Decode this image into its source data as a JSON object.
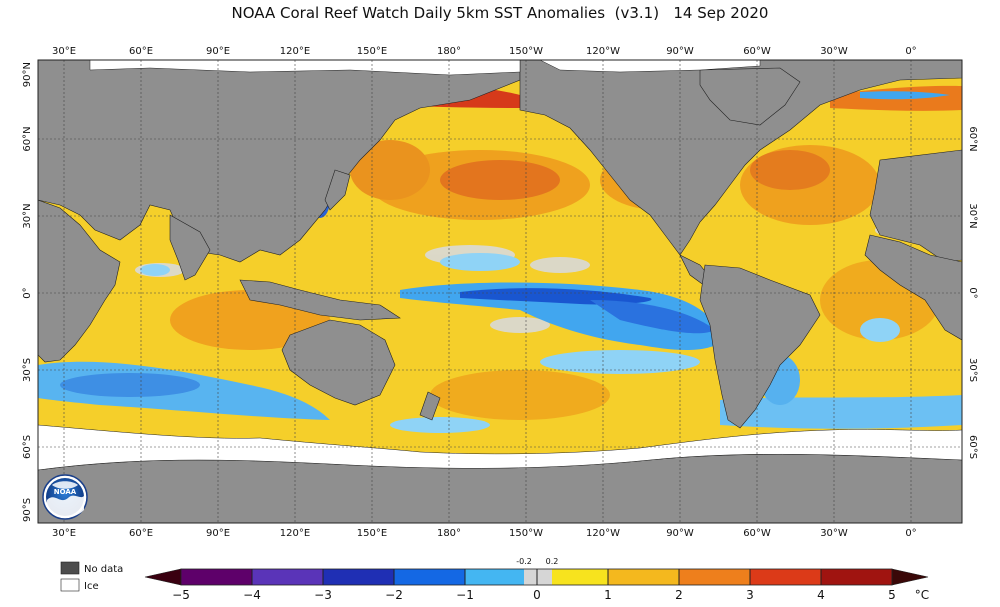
{
  "title": "NOAA Coral Reef Watch Daily 5km SST Anomalies  (v3.1)   14 Sep 2020",
  "lon_labels": [
    "30°E",
    "60°E",
    "90°E",
    "120°E",
    "150°E",
    "180°",
    "150°W",
    "120°W",
    "90°W",
    "60°W",
    "30°W",
    "0°"
  ],
  "lat_labels_left": [
    "90°N",
    "60°N",
    "30°N",
    "0°",
    "30°S",
    "60°S",
    "90°S"
  ],
  "lat_labels_right": [
    "60°N",
    "30°N",
    "0°",
    "30°S",
    "60°S"
  ],
  "legend": {
    "nodata_label": "No data",
    "ice_label": "Ice"
  },
  "colorbar": {
    "ticks": [
      "−5",
      "−4",
      "−3",
      "−2",
      "−1",
      "0",
      "1",
      "2",
      "3",
      "4",
      "5"
    ],
    "small_ticks": [
      "-0.2",
      "0.2"
    ],
    "unit": "°C"
  },
  "logo": {
    "text": "NOAA"
  },
  "colors": {
    "land": "#8f8f8f",
    "ocean_warm": "#f3c81f",
    "ocean_orange": "#f19a1c",
    "ocean_red": "#d8441c",
    "ocean_cold": "#3aa0ee",
    "ocean_cold_deep": "#1a5fd6",
    "ice": "#ffffff",
    "nodata": "#4c4c4c"
  }
}
